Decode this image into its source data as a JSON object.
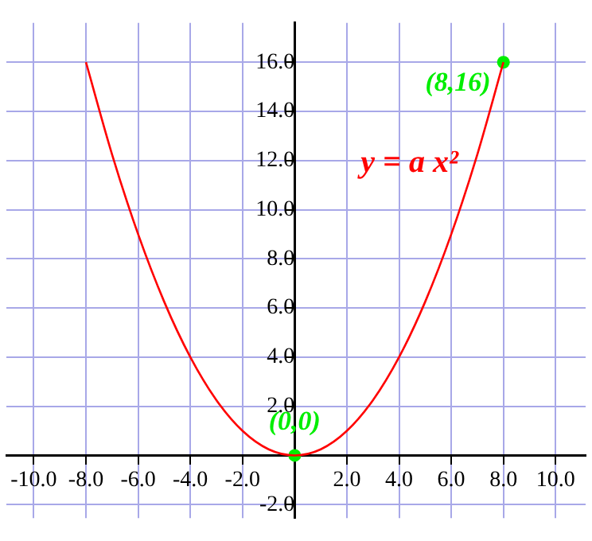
{
  "chart_data": {
    "type": "line",
    "xlim": [
      -11.05,
      11.15
    ],
    "ylim": [
      -2.55,
      17.6
    ],
    "xticks": [
      {
        "value": -10,
        "label": "-10.0"
      },
      {
        "value": -8,
        "label": "-8.0"
      },
      {
        "value": -6,
        "label": "-6.0"
      },
      {
        "value": -4,
        "label": "-4.0"
      },
      {
        "value": -2,
        "label": "-2.0"
      },
      {
        "value": 0,
        "label": null
      },
      {
        "value": 2,
        "label": "2.0"
      },
      {
        "value": 4,
        "label": "4.0"
      },
      {
        "value": 6,
        "label": "6.0"
      },
      {
        "value": 8,
        "label": "8.0"
      },
      {
        "value": 10,
        "label": "10.0"
      }
    ],
    "yticks": [
      {
        "value": -2,
        "label": "-2.0"
      },
      {
        "value": 0,
        "label": null
      },
      {
        "value": 2,
        "label": "2.0"
      },
      {
        "value": 4,
        "label": "4.0"
      },
      {
        "value": 6,
        "label": "6.0"
      },
      {
        "value": 8,
        "label": "8.0"
      },
      {
        "value": 10,
        "label": "10.0"
      },
      {
        "value": 12,
        "label": "12.0"
      },
      {
        "value": 14,
        "label": "14.0"
      },
      {
        "value": 16,
        "label": "16.0"
      }
    ],
    "grid": true,
    "legend": false,
    "series": [
      {
        "name": "y = a x²",
        "color": "#ff0000",
        "marker": "none",
        "x": [
          -8,
          -7,
          -6,
          -5,
          -4,
          -3,
          -2,
          -1,
          0,
          1,
          2,
          3,
          4,
          5,
          6,
          7,
          8
        ],
        "values": [
          16,
          12.25,
          9,
          6.25,
          4,
          2.25,
          1,
          0.25,
          0,
          0.25,
          1,
          2.25,
          4,
          6.25,
          9,
          12.25,
          16
        ]
      },
      {
        "type": "scatter",
        "color": "#00ee00",
        "marker": "circle",
        "x": [
          0,
          8
        ],
        "values": [
          0,
          16
        ]
      }
    ],
    "annotations": [
      {
        "text": "(0,0)",
        "x": 0,
        "y": 0
      },
      {
        "text": "(8,16)",
        "x": 8,
        "y": 16
      }
    ]
  }
}
